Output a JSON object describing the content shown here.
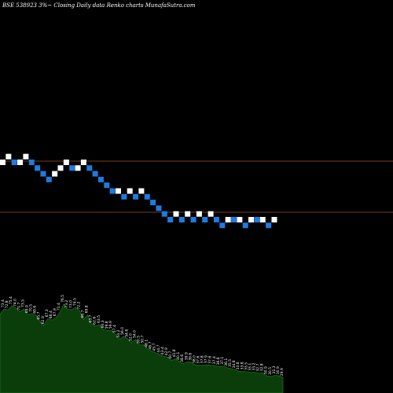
{
  "header": {
    "title": "BSE 538923 3%~   Closing Daily data  Renko  charts MunafaSutra.com"
  },
  "colors": {
    "background": "#000000",
    "up_brick": "#ffffff",
    "down_brick": "#1e7be0",
    "reference_line": "#a0522d",
    "area_fill": "#0b3d0b",
    "area_stroke": "#1c6b1c"
  },
  "chart_data": [
    {
      "type": "renko",
      "bricks": [
        {
          "level": 0,
          "dir": "up"
        },
        {
          "level": 1,
          "dir": "up"
        },
        {
          "level": 0,
          "dir": "down"
        },
        {
          "level": 0,
          "dir": "up"
        },
        {
          "level": 1,
          "dir": "up"
        },
        {
          "level": 0,
          "dir": "down"
        },
        {
          "level": -1,
          "dir": "down"
        },
        {
          "level": -2,
          "dir": "down"
        },
        {
          "level": -3,
          "dir": "down"
        },
        {
          "level": -2,
          "dir": "up"
        },
        {
          "level": -1,
          "dir": "up"
        },
        {
          "level": 0,
          "dir": "up"
        },
        {
          "level": -1,
          "dir": "down"
        },
        {
          "level": -1,
          "dir": "up"
        },
        {
          "level": 0,
          "dir": "up"
        },
        {
          "level": -1,
          "dir": "down"
        },
        {
          "level": -2,
          "dir": "down"
        },
        {
          "level": -3,
          "dir": "down"
        },
        {
          "level": -4,
          "dir": "down"
        },
        {
          "level": -5,
          "dir": "down"
        },
        {
          "level": -5,
          "dir": "up"
        },
        {
          "level": -6,
          "dir": "down"
        },
        {
          "level": -5,
          "dir": "up"
        },
        {
          "level": -6,
          "dir": "down"
        },
        {
          "level": -5,
          "dir": "up"
        },
        {
          "level": -6,
          "dir": "down"
        },
        {
          "level": -7,
          "dir": "down"
        },
        {
          "level": -8,
          "dir": "down"
        },
        {
          "level": -9,
          "dir": "down"
        },
        {
          "level": -10,
          "dir": "down"
        },
        {
          "level": -9,
          "dir": "up"
        },
        {
          "level": -10,
          "dir": "down"
        },
        {
          "level": -9,
          "dir": "up"
        },
        {
          "level": -10,
          "dir": "down"
        },
        {
          "level": -9,
          "dir": "up"
        },
        {
          "level": -10,
          "dir": "down"
        },
        {
          "level": -9,
          "dir": "up"
        },
        {
          "level": -10,
          "dir": "down"
        },
        {
          "level": -11,
          "dir": "down"
        },
        {
          "level": -10,
          "dir": "up"
        },
        {
          "level": -10,
          "dir": "down"
        },
        {
          "level": -10,
          "dir": "up"
        },
        {
          "level": -11,
          "dir": "down"
        },
        {
          "level": -10,
          "dir": "up"
        },
        {
          "level": -10,
          "dir": "down"
        },
        {
          "level": -10,
          "dir": "up"
        },
        {
          "level": -11,
          "dir": "down"
        },
        {
          "level": -10,
          "dir": "up"
        }
      ],
      "reference_lines": [
        "upper",
        "lower"
      ]
    },
    {
      "type": "area",
      "x": [
        0,
        1,
        2,
        3,
        4,
        5,
        6,
        7,
        8,
        9,
        10,
        11,
        12,
        13,
        14,
        15,
        16,
        17,
        18,
        19,
        20,
        21,
        22,
        23,
        24,
        25,
        26,
        27,
        28,
        29,
        30,
        31,
        32,
        33,
        34,
        35,
        36,
        37,
        38,
        39,
        40,
        41,
        42,
        43,
        44,
        45,
        46,
        47,
        48,
        49,
        50,
        51,
        52,
        53,
        54,
        55,
        56,
        57,
        58,
        59,
        60,
        61,
        62,
        63,
        64,
        65,
        66,
        67,
        68,
        69,
        70,
        71
      ],
      "values": [
        70.2,
        73.4,
        72.8,
        75.4,
        74.0,
        71.7,
        73.5,
        69.9,
        70.5,
        69.6,
        65.7,
        62.9,
        67.3,
        66.4,
        67.9,
        71.4,
        76.5,
        73.2,
        73.0,
        74.5,
        72.2,
        66.7,
        69.8,
        63.7,
        62.6,
        63.5,
        60.3,
        59.8,
        59.9,
        57.4,
        54.2,
        56.0,
        54.6,
        52.0,
        54.0,
        50.5,
        50.7,
        48.1,
        46.7,
        45.7,
        44.7,
        43.4,
        42.9,
        40.7,
        41.8,
        40.1,
        38.6,
        39.9,
        39.6,
        38.0,
        37.6,
        37.8,
        37.9,
        37.6,
        37.4,
        36.8,
        37.1,
        36.1,
        35.5,
        34.8,
        33.8,
        33.8,
        33.5,
        33.1,
        33.2,
        32.7,
        32.8,
        30.9,
        30.5,
        31.3,
        30.9,
        29.9
      ],
      "labels": [
        "70.2",
        "73.4",
        "72.8",
        "75.4",
        "74.0",
        "71.7",
        "73.5",
        "69.9",
        "70.5",
        "69.6",
        "65.7",
        "62.9",
        "67.3",
        "66.4",
        "67.9",
        "71.4",
        "76.5",
        "73.2",
        "73.0",
        "74.5",
        "72.2",
        "66.7",
        "69.8",
        "63.7",
        "62.6",
        "63.5",
        "60.3",
        "59.8",
        "59.9",
        "57.4",
        "54.2",
        "56.0",
        "54.6",
        "52.0",
        "54.0",
        "50.5",
        "50.7",
        "48.1",
        "46.7",
        "45.7",
        "44.7",
        "43.4",
        "42.9",
        "40.7",
        "41.8",
        "40.1",
        "38.6",
        "39.9",
        "39.6",
        "38.0",
        "37.6",
        "37.8",
        "37.9",
        "37.6",
        "37.4",
        "36.8",
        "37.1",
        "36.1",
        "35.5",
        "34.8",
        "33.8",
        "33.8",
        "33.5",
        "33.1",
        "33.2",
        "32.7",
        "32.8",
        "30.9",
        "30.5",
        "31.3",
        "30.9",
        "29.9"
      ],
      "ylim": [
        20,
        90
      ]
    }
  ]
}
